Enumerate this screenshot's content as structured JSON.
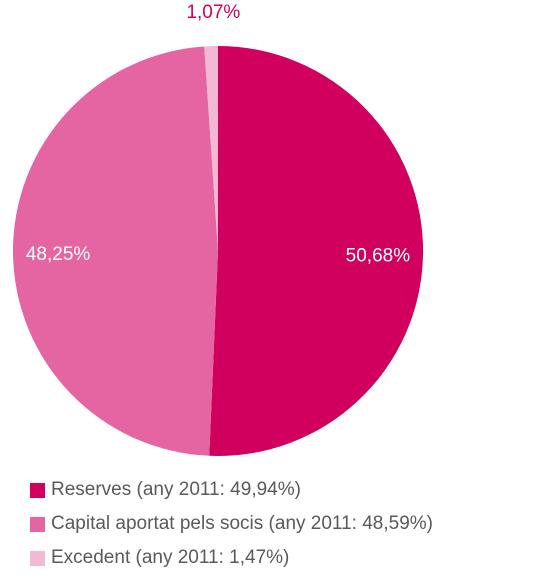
{
  "chart_data": {
    "type": "pie",
    "title": "",
    "start_angle_deg": 0,
    "direction": "clockwise",
    "slices": [
      {
        "name": "Reserves (any 2011: 49,94%)",
        "value": 50.68,
        "label": "50,68%",
        "color": "#d1005f",
        "label_color": "#ffffff"
      },
      {
        "name": "Capital aportat pels socis (any 2011: 48,59%)",
        "value": 48.25,
        "label": "48,25%",
        "color": "#e465a2",
        "label_color": "#ffffff"
      },
      {
        "name": "Excedent (any 2011: 1,47%)",
        "value": 1.07,
        "label": "1,07%",
        "color": "#f3b8d3",
        "label_color": "#d1005f"
      }
    ],
    "legend": {
      "position": "bottom-left",
      "entries": [
        "Reserves (any 2011: 49,94%)",
        "Capital aportat pels socis (any 2011: 48,59%)",
        "Excedent (any 2011: 1,47%)"
      ]
    }
  }
}
